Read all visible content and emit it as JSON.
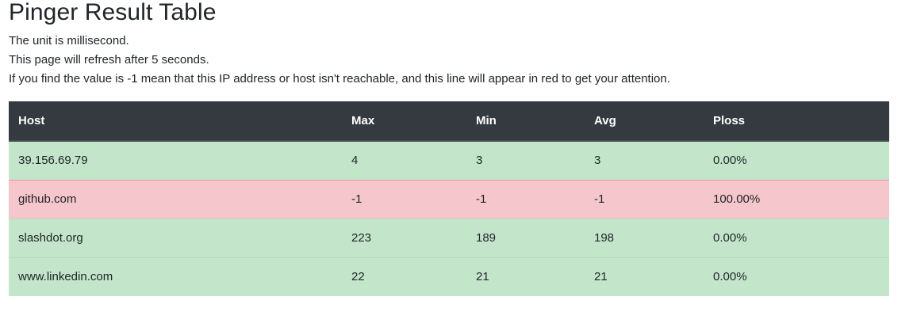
{
  "page": {
    "title": "Pinger Result Table",
    "lines": [
      "The unit is millisecond.",
      "This page will refresh after 5 seconds.",
      "If you find the value is -1 mean that this IP address or host isn't reachable, and this line will appear in red to get your attention."
    ]
  },
  "table": {
    "headers": [
      "Host",
      "Max",
      "Min",
      "Avg",
      "Ploss"
    ],
    "rows": [
      {
        "host": "39.156.69.79",
        "max": "4",
        "min": "3",
        "avg": "3",
        "ploss": "0.00%",
        "status": "ok"
      },
      {
        "host": "github.com",
        "max": "-1",
        "min": "-1",
        "avg": "-1",
        "ploss": "100.00%",
        "status": "unreachable"
      },
      {
        "host": "slashdot.org",
        "max": "223",
        "min": "189",
        "avg": "198",
        "ploss": "0.00%",
        "status": "ok"
      },
      {
        "host": "www.linkedin.com",
        "max": "22",
        "min": "21",
        "avg": "21",
        "ploss": "0.00%",
        "status": "ok"
      }
    ]
  },
  "colors": {
    "header_bg": "#343a40",
    "ok_row": "#c3e6cb",
    "unreachable_row": "#f5c6cb"
  }
}
